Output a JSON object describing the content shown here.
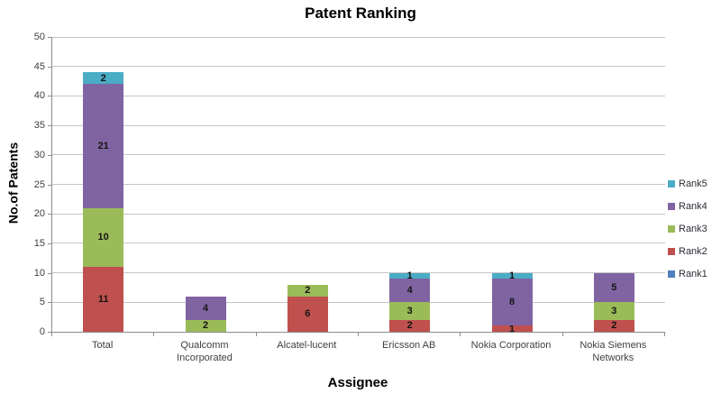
{
  "title": "Patent Ranking",
  "chart_data": {
    "type": "bar",
    "stacked": true,
    "title": "Patent Ranking",
    "xlabel": "Assignee",
    "ylabel": "No.of Patents",
    "ylim": [
      0,
      50
    ],
    "yticks": [
      0,
      5,
      10,
      15,
      20,
      25,
      30,
      35,
      40,
      45,
      50
    ],
    "grid": true,
    "legend_position": "right",
    "categories": [
      "Total",
      "Qualcomm Incorporated",
      "Alcatel-lucent",
      "Ericsson AB",
      "Nokia Corporation",
      "Nokia Siemens Networks"
    ],
    "series": [
      {
        "name": "Rank1",
        "color": "#4F81BD",
        "values": [
          0,
          0,
          0,
          0,
          0,
          0
        ]
      },
      {
        "name": "Rank2",
        "color": "#C0504D",
        "values": [
          11,
          0,
          6,
          2,
          1,
          2
        ]
      },
      {
        "name": "Rank3",
        "color": "#9BBB59",
        "values": [
          10,
          2,
          2,
          3,
          0,
          3
        ]
      },
      {
        "name": "Rank4",
        "color": "#8064A2",
        "values": [
          21,
          4,
          0,
          4,
          8,
          5
        ]
      },
      {
        "name": "Rank5",
        "color": "#4BACC6",
        "values": [
          2,
          0,
          0,
          1,
          1,
          0
        ]
      }
    ],
    "legend_order": [
      "Rank5",
      "Rank4",
      "Rank3",
      "Rank2",
      "Rank1"
    ]
  }
}
